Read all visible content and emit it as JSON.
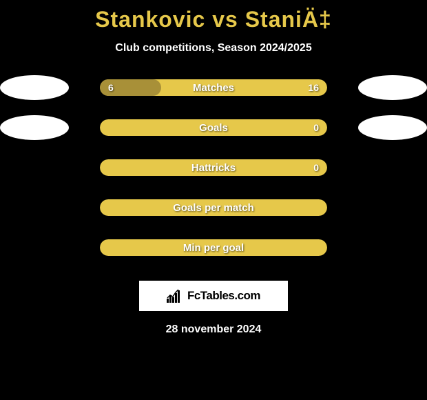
{
  "header": {
    "title": "Stankovic vs StaniÄ‡",
    "subtitle": "Club competitions, Season 2024/2025"
  },
  "colors": {
    "accent": "#e6c84a",
    "bar_fill": "#a89038",
    "background": "#000000",
    "text_light": "#ffffff",
    "brand_bg": "#ffffff",
    "brand_text": "#000000"
  },
  "stats": [
    {
      "label": "Matches",
      "left_value": "6",
      "right_value": "16",
      "fill_percent": 27,
      "show_badges": true
    },
    {
      "label": "Goals",
      "left_value": "",
      "right_value": "0",
      "fill_percent": 0,
      "show_badges": true
    },
    {
      "label": "Hattricks",
      "left_value": "",
      "right_value": "0",
      "fill_percent": 0,
      "show_badges": false
    },
    {
      "label": "Goals per match",
      "left_value": "",
      "right_value": "",
      "fill_percent": 0,
      "show_badges": false
    },
    {
      "label": "Min per goal",
      "left_value": "",
      "right_value": "",
      "fill_percent": 0,
      "show_badges": false
    }
  ],
  "brand": {
    "text": "FcTables.com"
  },
  "footer": {
    "date": "28 november 2024"
  }
}
